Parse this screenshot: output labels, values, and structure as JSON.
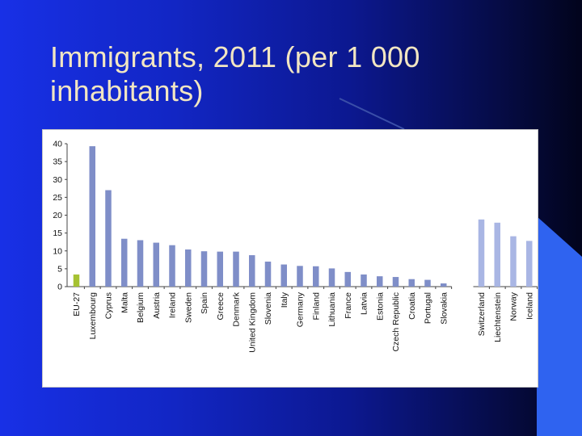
{
  "slide": {
    "title": "Immigrants, 2011 (per 1 000 inhabitants)",
    "background_color": "#1226c4",
    "title_color": "#f2e6c2",
    "accent_shape_color": "#2f63f0"
  },
  "chart_data": {
    "type": "bar",
    "title": "",
    "xlabel": "",
    "ylabel": "",
    "ylim": [
      0,
      40
    ],
    "yticks": [
      "0",
      "5",
      "10",
      "15",
      "20",
      "25",
      "30",
      "35",
      "40"
    ],
    "grid": false,
    "legend": "none",
    "categories": [
      "EU-27",
      "Luxembourg",
      "Cyprus",
      "Malta",
      "Belgium",
      "Austria",
      "Ireland",
      "Sweden",
      "Spain",
      "Greece",
      "Denmark",
      "United Kingdom",
      "Slovenia",
      "Italy",
      "Germany",
      "Finland",
      "Lithuania",
      "France",
      "Latvia",
      "Estonia",
      "Czech Republic",
      "Croatia",
      "Portugal",
      "Slovakia",
      "Switzerland",
      "Liechtenstein",
      "Norway",
      "Iceland"
    ],
    "values": [
      3.4,
      39.3,
      27.0,
      13.4,
      13.0,
      12.3,
      11.6,
      10.4,
      9.9,
      9.8,
      9.8,
      8.8,
      7.0,
      6.2,
      5.8,
      5.7,
      5.1,
      4.1,
      3.4,
      2.9,
      2.7,
      2.1,
      1.9,
      0.9,
      18.8,
      17.9,
      14.1,
      12.8
    ],
    "groups": [
      "aggregate",
      "eu",
      "eu",
      "eu",
      "eu",
      "eu",
      "eu",
      "eu",
      "eu",
      "eu",
      "eu",
      "eu",
      "eu",
      "eu",
      "eu",
      "eu",
      "eu",
      "eu",
      "eu",
      "eu",
      "eu",
      "eu",
      "eu",
      "eu",
      "efta",
      "efta",
      "efta",
      "efta"
    ],
    "colors": {
      "aggregate": "#a6c232",
      "eu": "#7f8ec8",
      "efta": "#a9b6e4"
    }
  }
}
